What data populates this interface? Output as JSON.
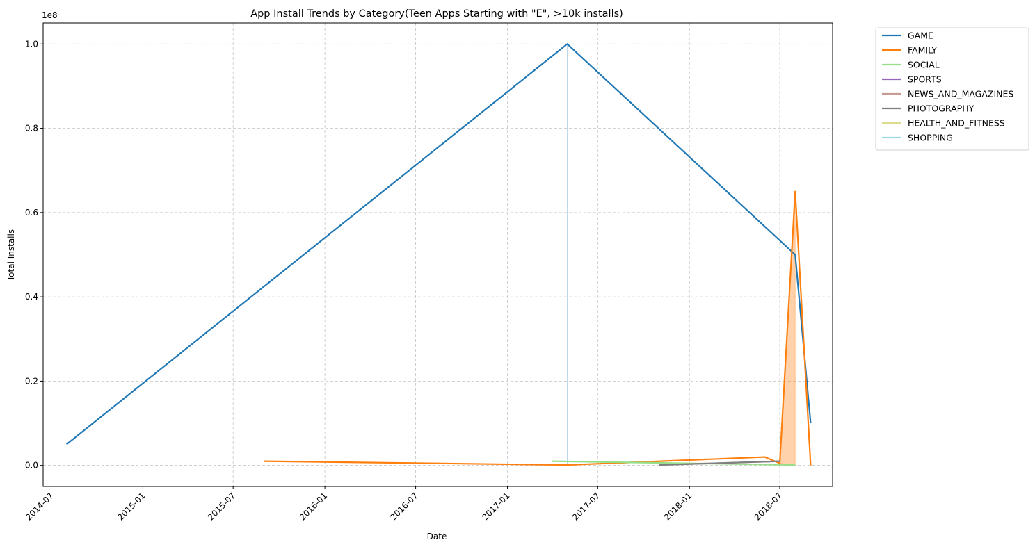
{
  "chart_data": {
    "type": "line",
    "title": "App Install Trends by Category(Teen Apps Starting with \"E\", >10k installs)",
    "xlabel": "Date",
    "ylabel": "Total Installs",
    "y_offset_label": "1e8",
    "y_scale": 100000000,
    "xlim": [
      "2014-06-15",
      "2018-10-15"
    ],
    "ylim": [
      -5000000,
      105000000
    ],
    "x_ticks": [
      "2014-07",
      "2015-01",
      "2015-07",
      "2016-01",
      "2016-07",
      "2017-01",
      "2017-07",
      "2018-01",
      "2018-07"
    ],
    "y_ticks": [
      0,
      20000000,
      40000000,
      60000000,
      80000000,
      100000000
    ],
    "y_tick_labels": [
      "0.0",
      "0.2",
      "0.4",
      "0.6",
      "0.8",
      "1.0"
    ],
    "grid": true,
    "legend_position": "outside-top-right",
    "series": [
      {
        "name": "GAME",
        "color": "#1f77b4",
        "x": [
          "2014-08-01",
          "2017-05-01",
          "2018-08-01",
          "2018-09-01"
        ],
        "y": [
          5000000,
          100000000,
          50000000,
          10000000
        ],
        "band": {
          "x": [
            "2017-05-01"
          ],
          "low": [
            0
          ],
          "high": [
            100000000
          ]
        }
      },
      {
        "name": "FAMILY",
        "color": "#ff7f0e",
        "x": [
          "2015-09-01",
          "2017-05-01",
          "2018-06-01",
          "2018-07-01",
          "2018-08-01",
          "2018-09-01"
        ],
        "y": [
          1000000,
          100000,
          2000000,
          500000,
          65000000,
          0
        ],
        "band": {
          "x": [
            "2018-06-01",
            "2018-07-01",
            "2018-08-01"
          ],
          "low": [
            2000000,
            500000,
            0
          ],
          "high": [
            2000000,
            500000,
            65000000
          ]
        }
      },
      {
        "name": "SOCIAL",
        "color": "#98df8a",
        "x": [
          "2017-04-01",
          "2018-08-01"
        ],
        "y": [
          1000000,
          100000
        ]
      },
      {
        "name": "SPORTS",
        "color": "#9467bd",
        "x": [],
        "y": []
      },
      {
        "name": "NEWS_AND_MAGAZINES",
        "color": "#c49c94",
        "x": [
          "2017-11-01",
          "2018-07-01"
        ],
        "y": [
          100000,
          1000000
        ]
      },
      {
        "name": "PHOTOGRAPHY",
        "color": "#7f7f7f",
        "x": [
          "2017-11-01",
          "2018-07-01"
        ],
        "y": [
          100000,
          1000000
        ]
      },
      {
        "name": "HEALTH_AND_FITNESS",
        "color": "#dbdb8d",
        "x": [],
        "y": []
      },
      {
        "name": "SHOPPING",
        "color": "#9edae5",
        "x": [],
        "y": []
      }
    ]
  }
}
